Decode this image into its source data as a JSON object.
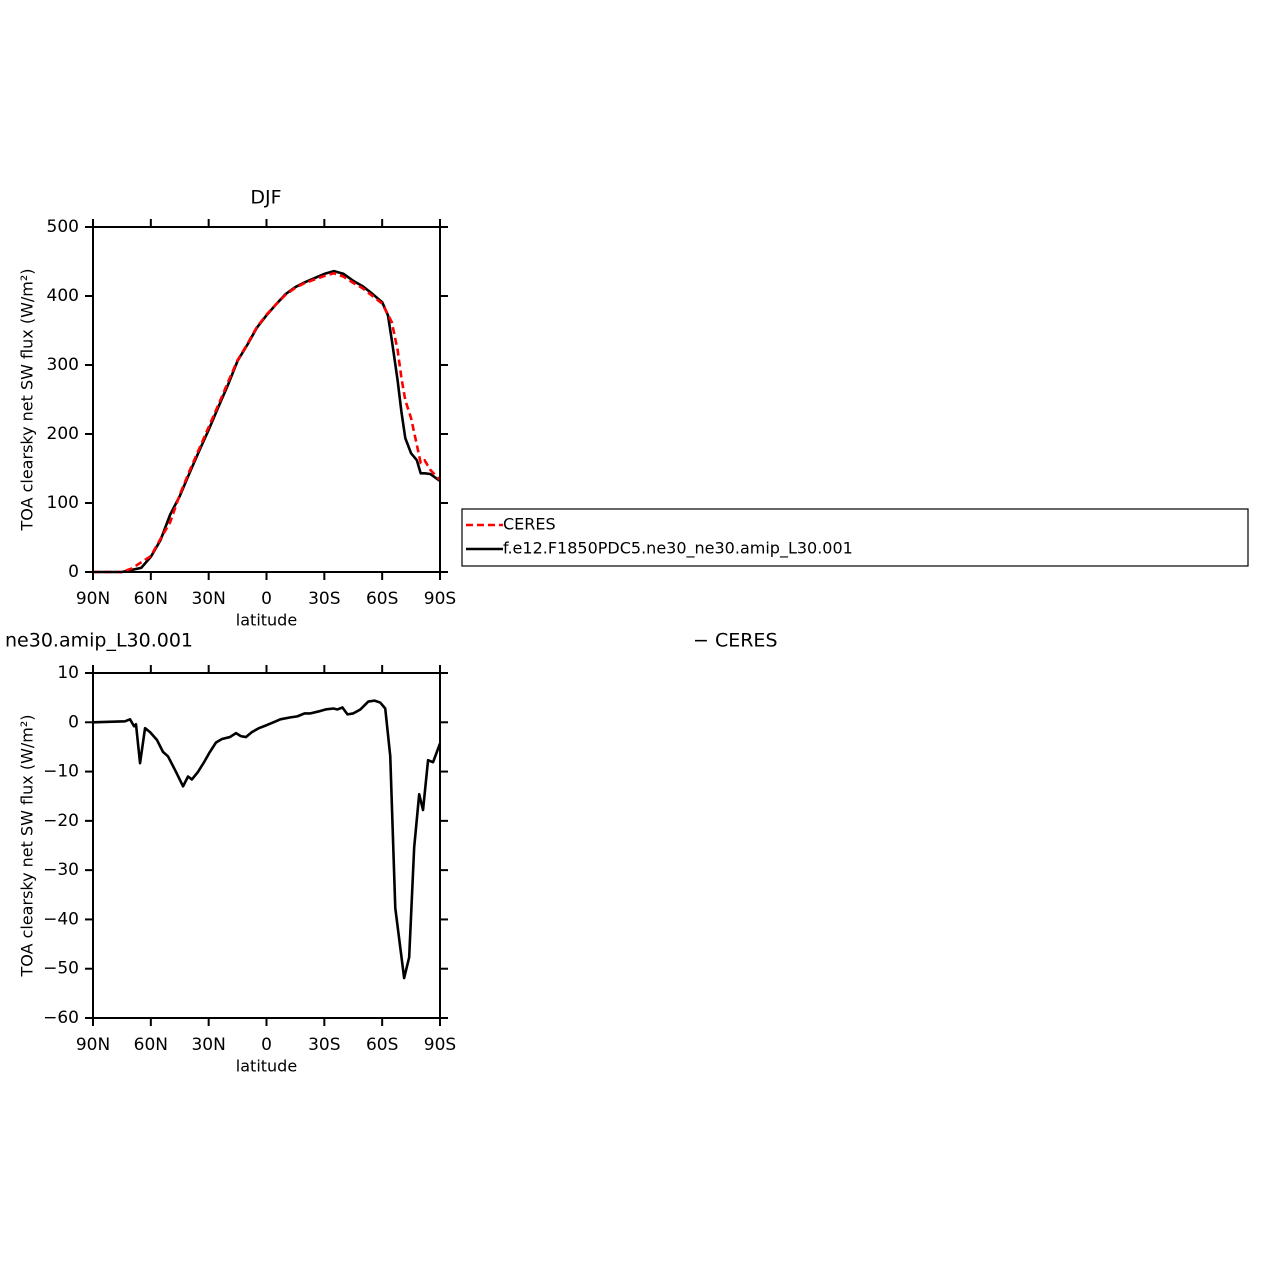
{
  "chart_data": [
    {
      "type": "line",
      "title": "DJF",
      "xlabel": "latitude",
      "ylabel": "TOA clearsky net SW flux (W/m²)",
      "x": [
        90,
        80,
        75,
        70,
        65,
        60,
        55,
        50,
        45,
        40,
        35,
        30,
        25,
        20,
        15,
        10,
        5,
        0,
        -5,
        -10,
        -15,
        -20,
        -25,
        -30,
        -35,
        -40,
        -45,
        -50,
        -55,
        -60,
        -63,
        -65,
        -68,
        -70,
        -72,
        -75,
        -78,
        -80,
        -82,
        -85,
        -90
      ],
      "series": [
        {
          "name": "CERES",
          "color": "#ff0000",
          "linestyle": "dashed",
          "values": [
            0,
            0,
            0,
            5,
            14,
            23,
            48,
            72,
            112,
            146,
            178,
            210,
            242,
            275,
            307,
            330,
            355,
            373,
            388,
            402,
            412,
            419,
            424,
            429,
            433,
            428,
            419,
            411,
            400,
            389,
            373,
            362,
            322,
            281,
            249,
            223,
            184,
            158,
            162,
            148,
            133
          ]
        },
        {
          "name": "f.e12.F1850PDC5.ne30_ne30.amip_L30.001",
          "color": "#000000",
          "linestyle": "solid",
          "values": [
            0,
            0,
            0,
            3,
            6,
            22,
            46,
            83,
            110,
            143,
            175,
            206,
            239,
            271,
            306,
            329,
            354,
            372,
            388,
            403,
            413,
            420,
            426,
            432,
            436,
            432,
            422,
            414,
            403,
            391,
            372,
            336,
            278,
            232,
            194,
            172,
            162,
            143,
            143,
            142,
            132
          ]
        }
      ],
      "xlim": [
        90,
        -90
      ],
      "xticks": [
        {
          "value": 90,
          "label": "90N"
        },
        {
          "value": 60,
          "label": "60N"
        },
        {
          "value": 30,
          "label": "30N"
        },
        0,
        {
          "value": -30,
          "label": "30S"
        },
        {
          "value": -60,
          "label": "60S"
        },
        {
          "value": -90,
          "label": "90S"
        }
      ],
      "ylim": [
        0,
        500
      ],
      "yticks": [
        0,
        100,
        200,
        300,
        400,
        500
      ]
    },
    {
      "type": "line",
      "title": "ne30.amip_L30.001",
      "right_title": "− CERES",
      "xlabel": "latitude",
      "ylabel": "TOA clearsky net SW flux (W/m²)",
      "x": [
        90,
        73.4,
        70.8,
        68.7,
        67.7,
        65.6,
        63,
        60.4,
        56.8,
        53.7,
        51.1,
        46.9,
        43.3,
        40.7,
        38.7,
        35.6,
        32.4,
        29.8,
        26.2,
        23.1,
        19,
        15.8,
        13.3,
        10.7,
        7.6,
        4,
        0,
        -3.6,
        -7.2,
        -12.4,
        -16,
        -19.7,
        -22.8,
        -27,
        -30.6,
        -34.7,
        -36.8,
        -39.4,
        -42,
        -45,
        -48.7,
        -52.8,
        -56,
        -59,
        -61.6,
        -64.2,
        -66.8,
        -71.4,
        -74,
        -76.6,
        -79.2,
        -81.2,
        -83.8,
        -86.4,
        -90
      ],
      "color": "#000000",
      "values": [
        0,
        0.2,
        0.6,
        -0.8,
        -0.4,
        -8.3,
        -1.2,
        -2,
        -3.6,
        -6,
        -6.9,
        -10.1,
        -13,
        -11,
        -11.6,
        -10.1,
        -8.1,
        -6.3,
        -4.1,
        -3.4,
        -3,
        -2.2,
        -2.8,
        -3,
        -2,
        -1.2,
        -0.6,
        0,
        0.6,
        1,
        1.2,
        1.8,
        1.8,
        2.2,
        2.6,
        2.8,
        2.6,
        3,
        1.6,
        1.8,
        2.6,
        4.2,
        4.4,
        4,
        2.8,
        -6.9,
        -37.7,
        -51.9,
        -47.7,
        -25.4,
        -14.6,
        -17.8,
        -7.7,
        -8.1,
        -4.3
      ],
      "xlim": [
        90,
        -90
      ],
      "xticks": [
        {
          "value": 90,
          "label": "90N"
        },
        {
          "value": 60,
          "label": "60N"
        },
        {
          "value": 30,
          "label": "30N"
        },
        0,
        {
          "value": -30,
          "label": "30S"
        },
        {
          "value": -60,
          "label": "60S"
        },
        {
          "value": -90,
          "label": "90S"
        }
      ],
      "ylim": [
        -60,
        10
      ],
      "yticks": [
        {
          "value": 10,
          "label": "10"
        },
        0,
        {
          "value": -10,
          "label": "−10"
        },
        {
          "value": -20,
          "label": "−20"
        },
        {
          "value": -30,
          "label": "−30"
        },
        {
          "value": -40,
          "label": "−40"
        },
        {
          "value": -50,
          "label": "−50"
        },
        {
          "value": -60,
          "label": "−60"
        }
      ]
    }
  ]
}
